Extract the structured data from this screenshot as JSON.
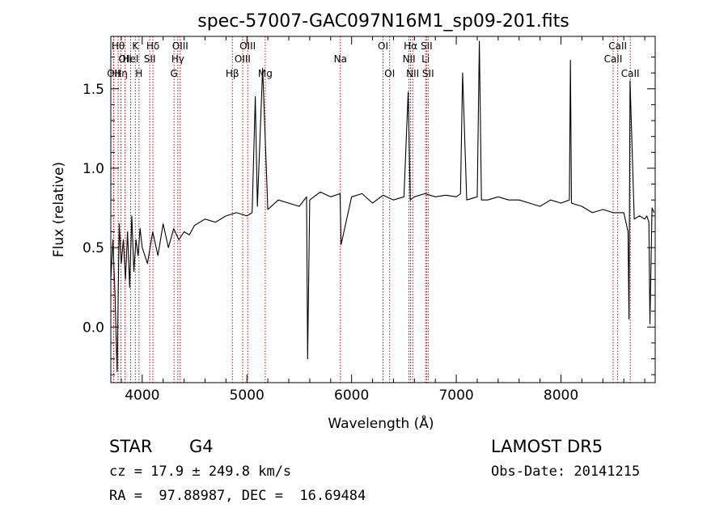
{
  "chart_data": {
    "type": "line",
    "title": "spec-57007-GAC097N16M1_sp09-201.fits",
    "xlabel": "Wavelength (Å)",
    "ylabel": "Flux (relative)",
    "xlim": [
      3700,
      8900
    ],
    "ylim": [
      -0.35,
      1.83
    ],
    "xticks": [
      4000,
      5000,
      6000,
      7000,
      8000
    ],
    "yticks": [
      0.0,
      0.5,
      1.0,
      1.5
    ],
    "xtick_labels": [
      "4000",
      "5000",
      "6000",
      "7000",
      "8000"
    ],
    "ytick_labels": [
      "0.0",
      "0.5",
      "1.0",
      "1.5"
    ],
    "series": [
      {
        "x": [
          3700,
          3720,
          3740,
          3760,
          3780,
          3800,
          3820,
          3840,
          3860,
          3880,
          3900,
          3920,
          3940,
          3960,
          3980,
          4000,
          4050,
          4100,
          4150,
          4200,
          4250,
          4300,
          4350,
          4400,
          4450,
          4500,
          4600,
          4700,
          4800,
          4900,
          5000,
          5050,
          5080,
          5100,
          5150,
          5200,
          5300,
          5400,
          5500,
          5570,
          5580,
          5600,
          5700,
          5800,
          5890,
          5900,
          6000,
          6100,
          6200,
          6300,
          6400,
          6500,
          6540,
          6560,
          6600,
          6700,
          6800,
          6900,
          7000,
          7040,
          7060,
          7100,
          7200,
          7220,
          7240,
          7300,
          7400,
          7500,
          7600,
          7700,
          7800,
          7900,
          8000,
          8080,
          8090,
          8100,
          8200,
          8300,
          8400,
          8500,
          8600,
          8640,
          8650,
          8660,
          8700,
          8750,
          8800,
          8820,
          8840,
          8850,
          8870,
          8890
        ],
        "y": [
          0.3,
          0.55,
          0.2,
          -0.28,
          0.65,
          0.4,
          0.55,
          0.3,
          0.6,
          0.25,
          0.7,
          0.35,
          0.55,
          0.45,
          0.62,
          0.5,
          0.4,
          0.6,
          0.45,
          0.65,
          0.5,
          0.62,
          0.55,
          0.6,
          0.58,
          0.64,
          0.68,
          0.66,
          0.7,
          0.72,
          0.7,
          0.72,
          1.45,
          0.76,
          1.63,
          0.74,
          0.8,
          0.78,
          0.76,
          0.82,
          -0.2,
          0.8,
          0.85,
          0.82,
          0.84,
          0.52,
          0.82,
          0.84,
          0.78,
          0.83,
          0.8,
          0.82,
          1.48,
          0.8,
          0.82,
          0.84,
          0.82,
          0.83,
          0.82,
          0.84,
          1.6,
          0.8,
          0.82,
          1.8,
          0.8,
          0.8,
          0.82,
          0.8,
          0.8,
          0.78,
          0.76,
          0.8,
          0.78,
          0.8,
          1.68,
          0.78,
          0.76,
          0.72,
          0.74,
          0.72,
          0.72,
          0.6,
          0.05,
          1.55,
          0.68,
          0.7,
          0.68,
          0.7,
          0.66,
          0.02,
          0.75,
          0.72
        ]
      }
    ],
    "line_markers": [
      {
        "wl": 3727,
        "labels": [
          "OII"
        ],
        "row": 3
      },
      {
        "wl": 3770,
        "labels": [
          "Hθ"
        ],
        "row": 1
      },
      {
        "wl": 3797,
        "labels": [
          "Hη"
        ],
        "row": 3
      },
      {
        "wl": 3836,
        "labels": [
          "OII"
        ],
        "row": 2
      },
      {
        "wl": 3889,
        "labels": [
          "HeI"
        ],
        "row": 2
      },
      {
        "wl": 3934,
        "labels": [
          "K"
        ],
        "row": 1
      },
      {
        "wl": 3969,
        "labels": [
          "H"
        ],
        "row": 3
      },
      {
        "wl": 4072,
        "labels": [
          "SII"
        ],
        "row": 2
      },
      {
        "wl": 4102,
        "labels": [
          "Hδ"
        ],
        "row": 1
      },
      {
        "wl": 4304,
        "labels": [
          "G"
        ],
        "row": 3
      },
      {
        "wl": 4340,
        "labels": [
          "Hγ"
        ],
        "row": 2
      },
      {
        "wl": 4363,
        "labels": [
          "OIII"
        ],
        "row": 1
      },
      {
        "wl": 4861,
        "labels": [
          "Hβ"
        ],
        "row": 3
      },
      {
        "wl": 4959,
        "labels": [
          "OIII"
        ],
        "row": 2
      },
      {
        "wl": 5007,
        "labels": [
          "OIII"
        ],
        "row": 1
      },
      {
        "wl": 5175,
        "labels": [
          "Mg"
        ],
        "row": 3
      },
      {
        "wl": 5893,
        "labels": [
          "Na"
        ],
        "row": 2
      },
      {
        "wl": 6300,
        "labels": [
          "OI"
        ],
        "row": 1
      },
      {
        "wl": 6364,
        "labels": [
          "OI"
        ],
        "row": 3
      },
      {
        "wl": 6548,
        "labels": [
          "NII"
        ],
        "row": 2
      },
      {
        "wl": 6563,
        "labels": [
          "Hα"
        ],
        "row": 1
      },
      {
        "wl": 6583,
        "labels": [
          "NII"
        ],
        "row": 3
      },
      {
        "wl": 6707,
        "labels": [
          "Li"
        ],
        "row": 2
      },
      {
        "wl": 6716,
        "labels": [
          "SII"
        ],
        "row": 1
      },
      {
        "wl": 6731,
        "labels": [
          "SII"
        ],
        "row": 3
      },
      {
        "wl": 8498,
        "labels": [
          "CaII"
        ],
        "row": 2
      },
      {
        "wl": 8542,
        "labels": [
          "CaII"
        ],
        "row": 1
      },
      {
        "wl": 8662,
        "labels": [
          "CaII"
        ],
        "row": 3
      }
    ],
    "line_color": "#000000",
    "marker_color": "#cc0000"
  },
  "info": {
    "class": "STAR",
    "subclass": "G4",
    "survey": "LAMOST DR5",
    "cz": "cz = 17.9 ± 249.8 km/s",
    "obs_date": "Obs-Date: 20141215",
    "radec": "RA =  97.88987, DEC =  16.69484"
  }
}
